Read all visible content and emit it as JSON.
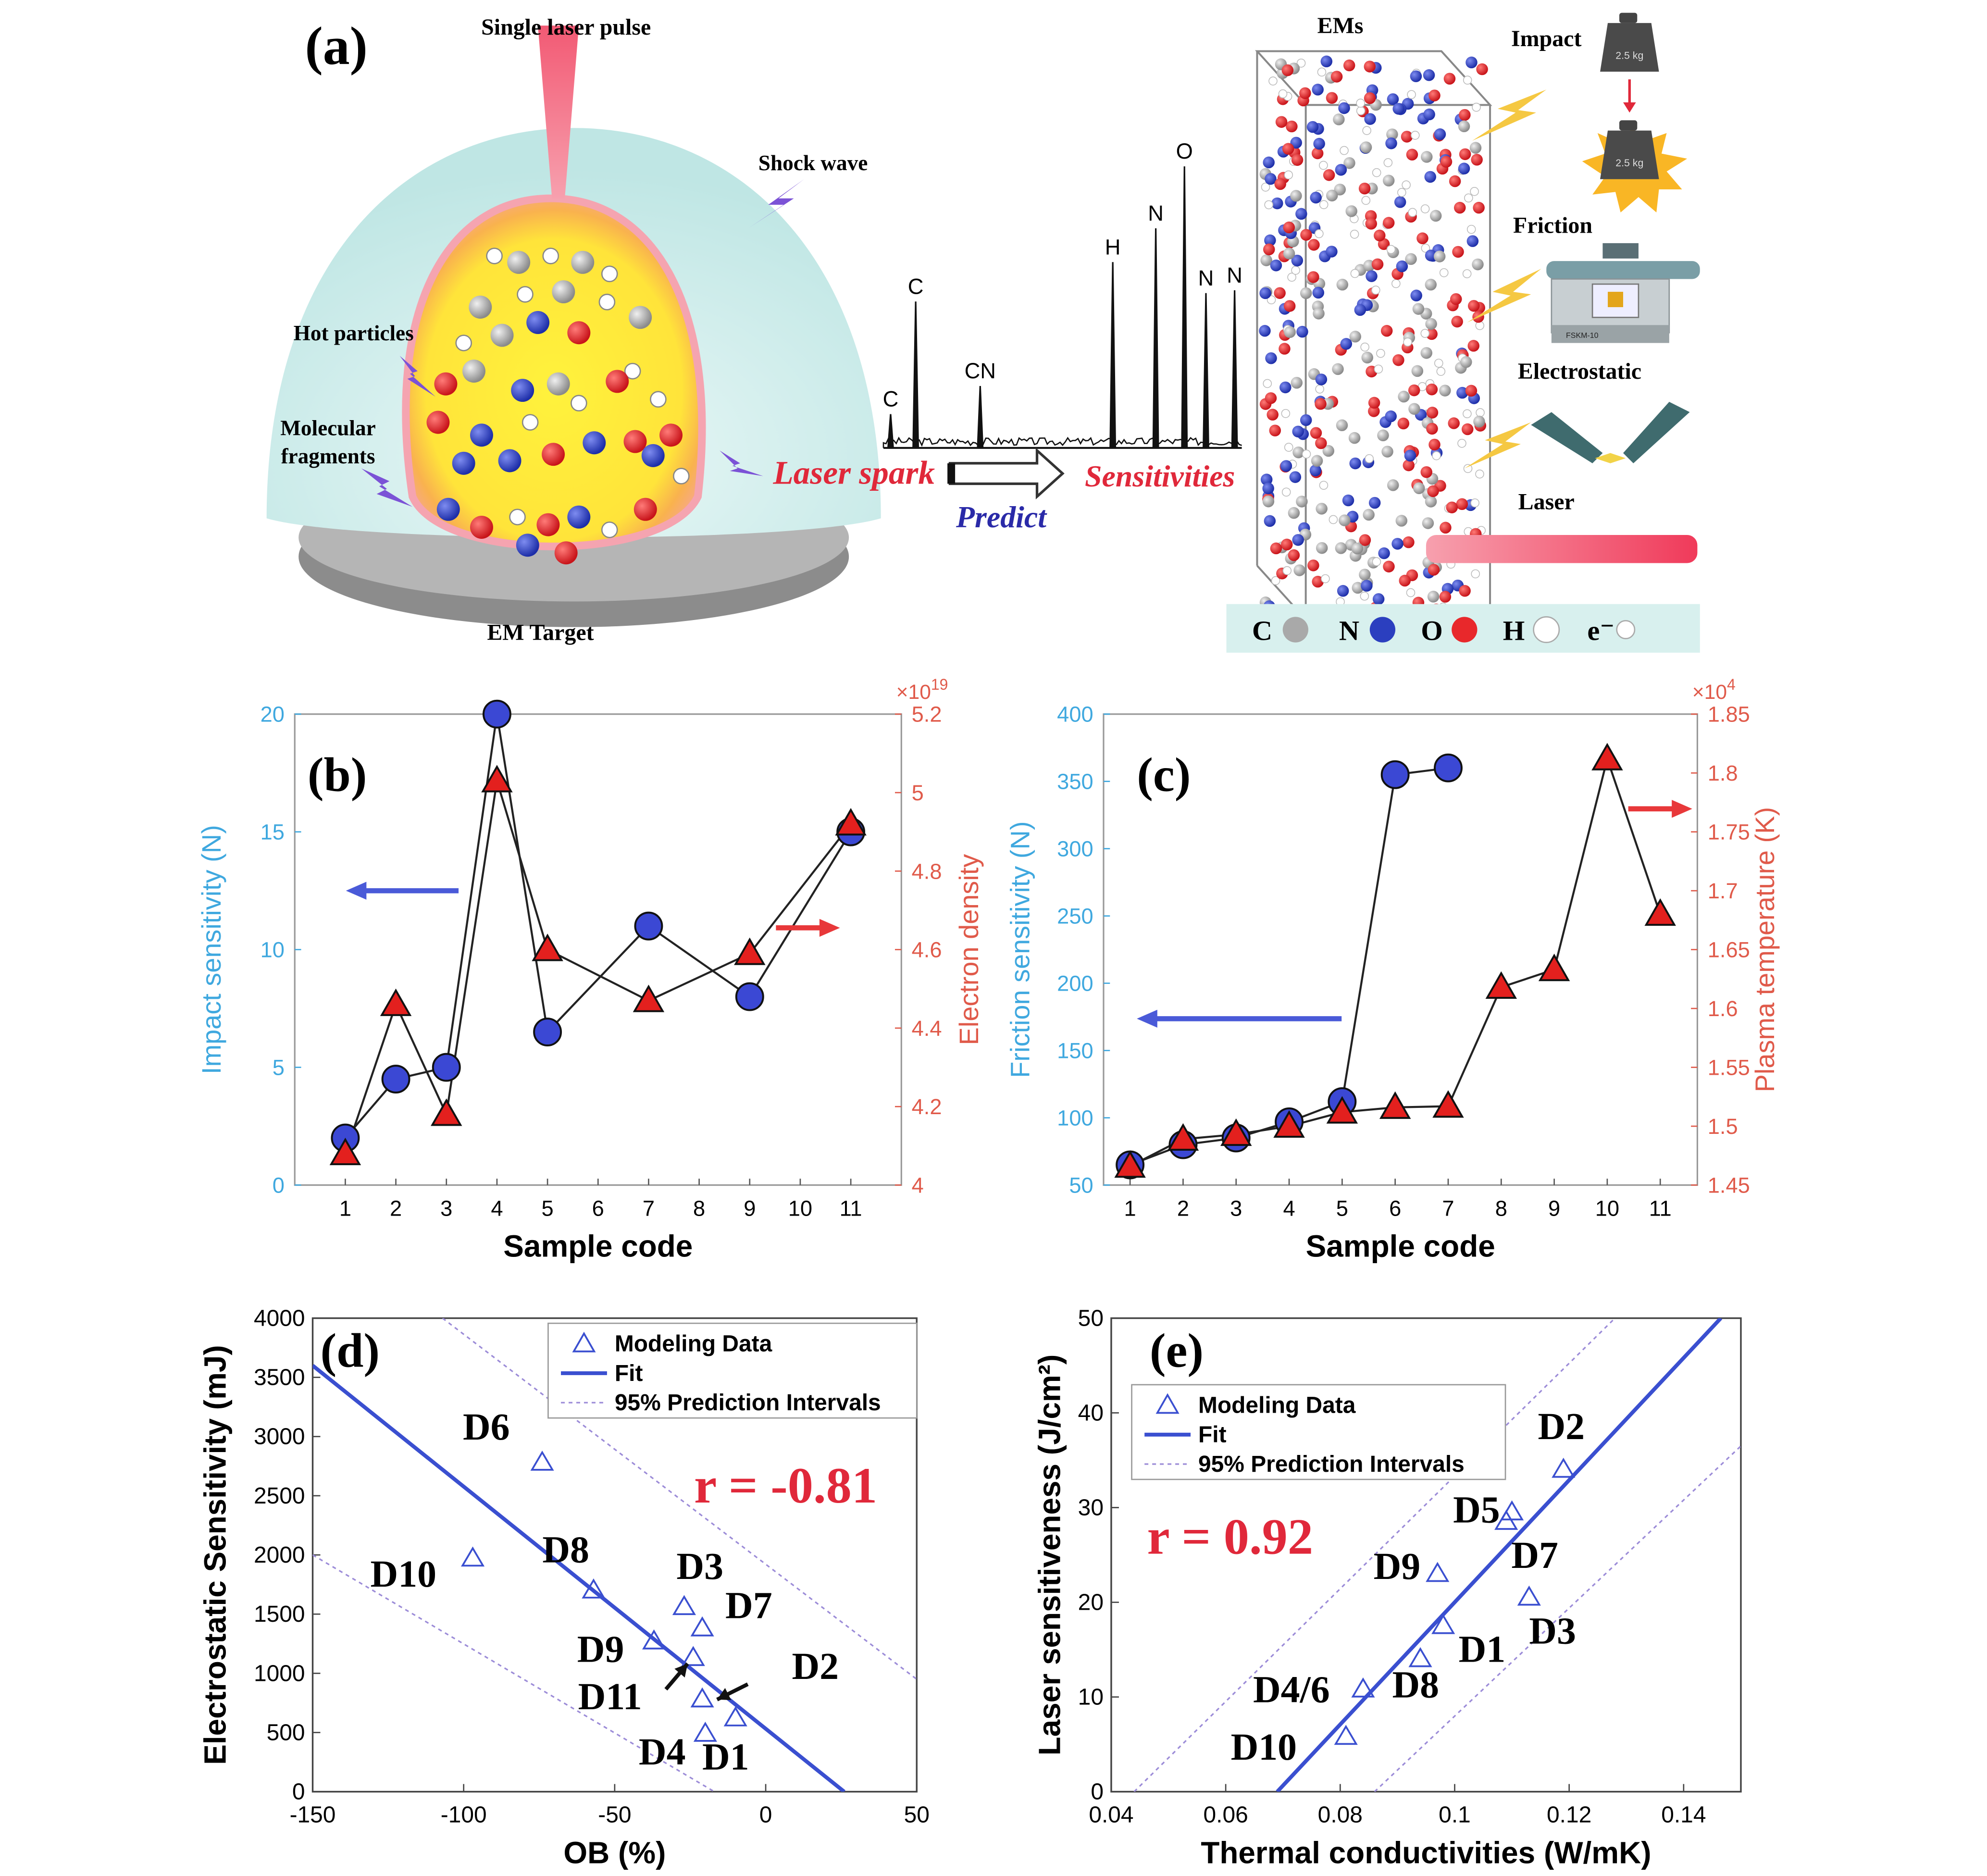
{
  "panel_a": {
    "label": "(a)",
    "laser_pulse": "Single laser pulse",
    "shock_wave": "Shock wave",
    "hot_particles": "Hot particles",
    "molecular_fragments_1": "Molecular",
    "molecular_fragments_2": "fragments",
    "em_target": "EM Target",
    "laser_spark": "Laser spark",
    "predict": "Predict",
    "sensitivities": "Sensitivities",
    "ems": "EMs",
    "impact": "Impact",
    "friction": "Friction",
    "electrostatic": "Electrostatic",
    "laser": "Laser",
    "weight_label": "2.5 kg",
    "device_label": "FSKM-10",
    "spectrum_peaks": [
      {
        "label": "C",
        "x": 0.02,
        "h": 0.12
      },
      {
        "label": "C",
        "x": 0.09,
        "h": 0.52
      },
      {
        "label": "CN",
        "x": 0.27,
        "h": 0.22
      },
      {
        "label": "H",
        "x": 0.64,
        "h": 0.66
      },
      {
        "label": "N",
        "x": 0.76,
        "h": 0.78
      },
      {
        "label": "O",
        "x": 0.84,
        "h": 1.0
      },
      {
        "label": "N",
        "x": 0.9,
        "h": 0.55
      },
      {
        "label": "N",
        "x": 0.98,
        "h": 0.56
      }
    ],
    "legend": [
      {
        "symbol": "C",
        "color": "#a9a9a9"
      },
      {
        "symbol": "N",
        "color": "#2b3fbf"
      },
      {
        "symbol": "O",
        "color": "#e8282b"
      },
      {
        "symbol": "H",
        "color": "#ffffff"
      },
      {
        "symbol": "e⁻",
        "color": "#ffffff"
      }
    ],
    "colors": {
      "dome": "#d6f0ef",
      "plasma_outer": "#f7a14a",
      "plasma_inner": "#ffea3c",
      "laser": "#f0506a",
      "base": "#a0a0a0"
    }
  },
  "chart_data": [
    {
      "id": "b",
      "label": "(b)",
      "type": "line",
      "xlabel": "Sample code",
      "x_ticks": [
        1,
        2,
        3,
        4,
        5,
        6,
        7,
        8,
        9,
        10,
        11
      ],
      "xlim": [
        0,
        12
      ],
      "y_left": {
        "label": "Impact sensitivity (N)",
        "lim": [
          0,
          20
        ],
        "ticks": [
          0,
          5,
          10,
          15,
          20
        ],
        "color": "#3fa8df"
      },
      "y_right": {
        "label": "Electron density",
        "lim": [
          4,
          5.2
        ],
        "ticks": [
          "4",
          "4.2",
          "4.4",
          "4.6",
          "4.8",
          "5",
          "5.2"
        ],
        "multiplier": "×10",
        "exponent": "19",
        "color": "#e05a4a"
      },
      "series": [
        {
          "axis": "left",
          "marker": "circle",
          "x": [
            1,
            2,
            3,
            4,
            5,
            7,
            9,
            11
          ],
          "y": [
            2,
            4.5,
            5,
            20,
            6.5,
            11,
            8,
            15
          ]
        },
        {
          "axis": "right",
          "marker": "triangle",
          "x": [
            1,
            2,
            3,
            4,
            5,
            7,
            9,
            11
          ],
          "y": [
            4.08,
            4.46,
            4.18,
            5.03,
            4.6,
            4.47,
            4.59,
            4.92
          ]
        }
      ]
    },
    {
      "id": "c",
      "label": "(c)",
      "type": "line",
      "xlabel": "Sample code",
      "x_ticks": [
        1,
        2,
        3,
        4,
        5,
        6,
        7,
        8,
        9,
        10,
        11
      ],
      "xlim": [
        0.5,
        11.7
      ],
      "y_left": {
        "label": "Friction sensitivity (N)",
        "lim": [
          50,
          400
        ],
        "ticks": [
          50,
          100,
          150,
          200,
          250,
          300,
          350,
          400
        ],
        "color": "#3fa8df"
      },
      "y_right": {
        "label": "Plasma temperature (K)",
        "lim": [
          1.45,
          1.85
        ],
        "ticks": [
          "1.45",
          "1.5",
          "1.55",
          "1.6",
          "1.65",
          "1.7",
          "1.75",
          "1.8",
          "1.85"
        ],
        "multiplier": "×10",
        "exponent": "4",
        "color": "#e05a4a"
      },
      "series": [
        {
          "axis": "left",
          "marker": "circle",
          "x": [
            1,
            2,
            3,
            4,
            5,
            6,
            7
          ],
          "y": [
            65,
            80,
            85,
            97,
            112,
            355,
            360
          ]
        },
        {
          "axis": "right",
          "marker": "triangle",
          "x": [
            1,
            2,
            3,
            4,
            5,
            6,
            7,
            8,
            9,
            10,
            11
          ],
          "y": [
            1.466,
            1.489,
            1.493,
            1.5,
            1.512,
            1.516,
            1.517,
            1.618,
            1.633,
            1.812,
            1.68
          ]
        }
      ]
    },
    {
      "id": "d",
      "label": "(d)",
      "type": "scatter",
      "xlabel": "OB (%)",
      "ylabel": "Electrostatic Sensitivity (mJ)",
      "xlim": [
        -150,
        50
      ],
      "ylim": [
        0,
        4000
      ],
      "x_ticks": [
        -150,
        -100,
        -50,
        0,
        50
      ],
      "y_ticks": [
        0,
        500,
        1000,
        1500,
        2000,
        2500,
        3000,
        3500,
        4000
      ],
      "legend": [
        "Modeling Data",
        "Fit",
        "95% Prediction Intervals"
      ],
      "r_text": "r = -0.81",
      "points": [
        {
          "name": "D6",
          "x": -74,
          "y": 2780
        },
        {
          "name": "D10",
          "x": -97,
          "y": 1970
        },
        {
          "name": "D8",
          "x": -57,
          "y": 1700
        },
        {
          "name": "D3",
          "x": -27,
          "y": 1560
        },
        {
          "name": "D7",
          "x": -21,
          "y": 1380
        },
        {
          "name": "D9",
          "x": -37,
          "y": 1270
        },
        {
          "name": "D11",
          "x": -24,
          "y": 1130
        },
        {
          "name": "D2",
          "x": -21,
          "y": 780
        },
        {
          "name": "D4",
          "x": -20,
          "y": 490
        },
        {
          "name": "D1",
          "x": -10,
          "y": 620
        }
      ],
      "fit": {
        "x": [
          -150,
          26
        ],
        "y": [
          3600,
          0
        ]
      },
      "pi_upper": {
        "x": [
          -107,
          50
        ],
        "y": [
          4000,
          950
        ]
      },
      "pi_lower": {
        "x": [
          -150,
          -17
        ],
        "y": [
          2000,
          0
        ]
      }
    },
    {
      "id": "e",
      "label": "(e)",
      "type": "scatter",
      "xlabel": "Thermal conductivities (W/mK)",
      "ylabel": "Laser sensitiveness (J/cm²)",
      "xlim": [
        0.04,
        0.15
      ],
      "ylim": [
        0,
        50
      ],
      "x_ticks": [
        "0.04",
        "0.06",
        "0.08",
        "0.1",
        "0.12",
        "0.14"
      ],
      "y_ticks": [
        0,
        10,
        20,
        30,
        40,
        50
      ],
      "legend": [
        "Modeling Data",
        "Fit",
        "95% Prediction Intervals"
      ],
      "r_text": "r = 0.92",
      "points": [
        {
          "name": "D2",
          "x": 0.119,
          "y": 34
        },
        {
          "name": "D5",
          "x": 0.11,
          "y": 29.5
        },
        {
          "name": "D7",
          "x": 0.109,
          "y": 28.5
        },
        {
          "name": "D9",
          "x": 0.097,
          "y": 23
        },
        {
          "name": "D3",
          "x": 0.113,
          "y": 20.5
        },
        {
          "name": "D1",
          "x": 0.098,
          "y": 17.5
        },
        {
          "name": "D8",
          "x": 0.094,
          "y": 14
        },
        {
          "name": "D4/6",
          "x": 0.084,
          "y": 10.8
        },
        {
          "name": "D10",
          "x": 0.081,
          "y": 5.8
        }
      ],
      "fit": {
        "x": [
          0.069,
          0.1465
        ],
        "y": [
          0,
          50
        ]
      },
      "pi_upper": {
        "x": [
          0.044,
          0.128
        ],
        "y": [
          0,
          50
        ]
      },
      "pi_lower": {
        "x": [
          0.086,
          0.15
        ],
        "y": [
          0,
          36.5
        ]
      }
    }
  ]
}
